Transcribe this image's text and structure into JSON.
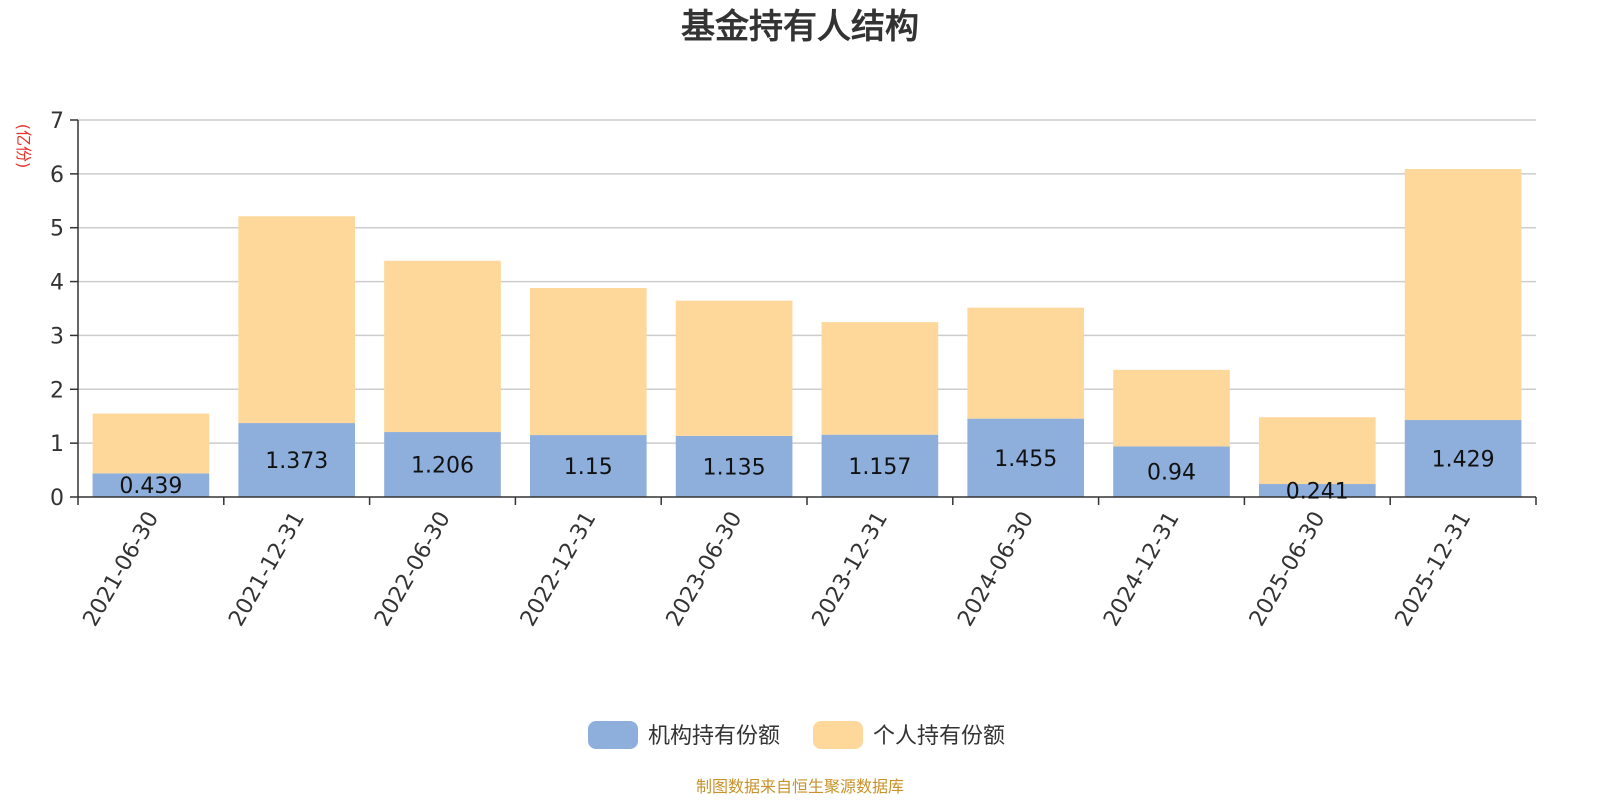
{
  "chart_data": {
    "type": "bar",
    "stacked": true,
    "title": "基金持有人结构",
    "ylabel": "(亿份)",
    "ylim": [
      0,
      7
    ],
    "yticks": [
      "0",
      "1",
      "2",
      "3",
      "4",
      "5",
      "6",
      "7"
    ],
    "grid": true,
    "legend_position": "bottom",
    "categories": [
      "2021-06-30",
      "2021-12-31",
      "2022-06-30",
      "2022-12-31",
      "2023-06-30",
      "2023-12-31",
      "2024-06-30",
      "2024-12-31",
      "2025-06-30",
      "2025-12-31"
    ],
    "series": [
      {
        "name": "机构持有份额",
        "color": "#8eaedc",
        "values": [
          0.439,
          1.373,
          1.206,
          1.15,
          1.135,
          1.157,
          1.455,
          0.94,
          0.241,
          1.429
        ],
        "labels": [
          "0.439",
          "1.373",
          "1.206",
          "1.15",
          "1.135",
          "1.157",
          "1.455",
          "0.94",
          "0.241",
          "1.429"
        ]
      },
      {
        "name": "个人持有份额",
        "color": "#fdd89a",
        "values": [
          1.11,
          3.84,
          3.18,
          2.73,
          2.51,
          2.09,
          2.06,
          1.42,
          1.24,
          4.66
        ]
      }
    ],
    "source": "制图数据来自恒生聚源数据库"
  }
}
